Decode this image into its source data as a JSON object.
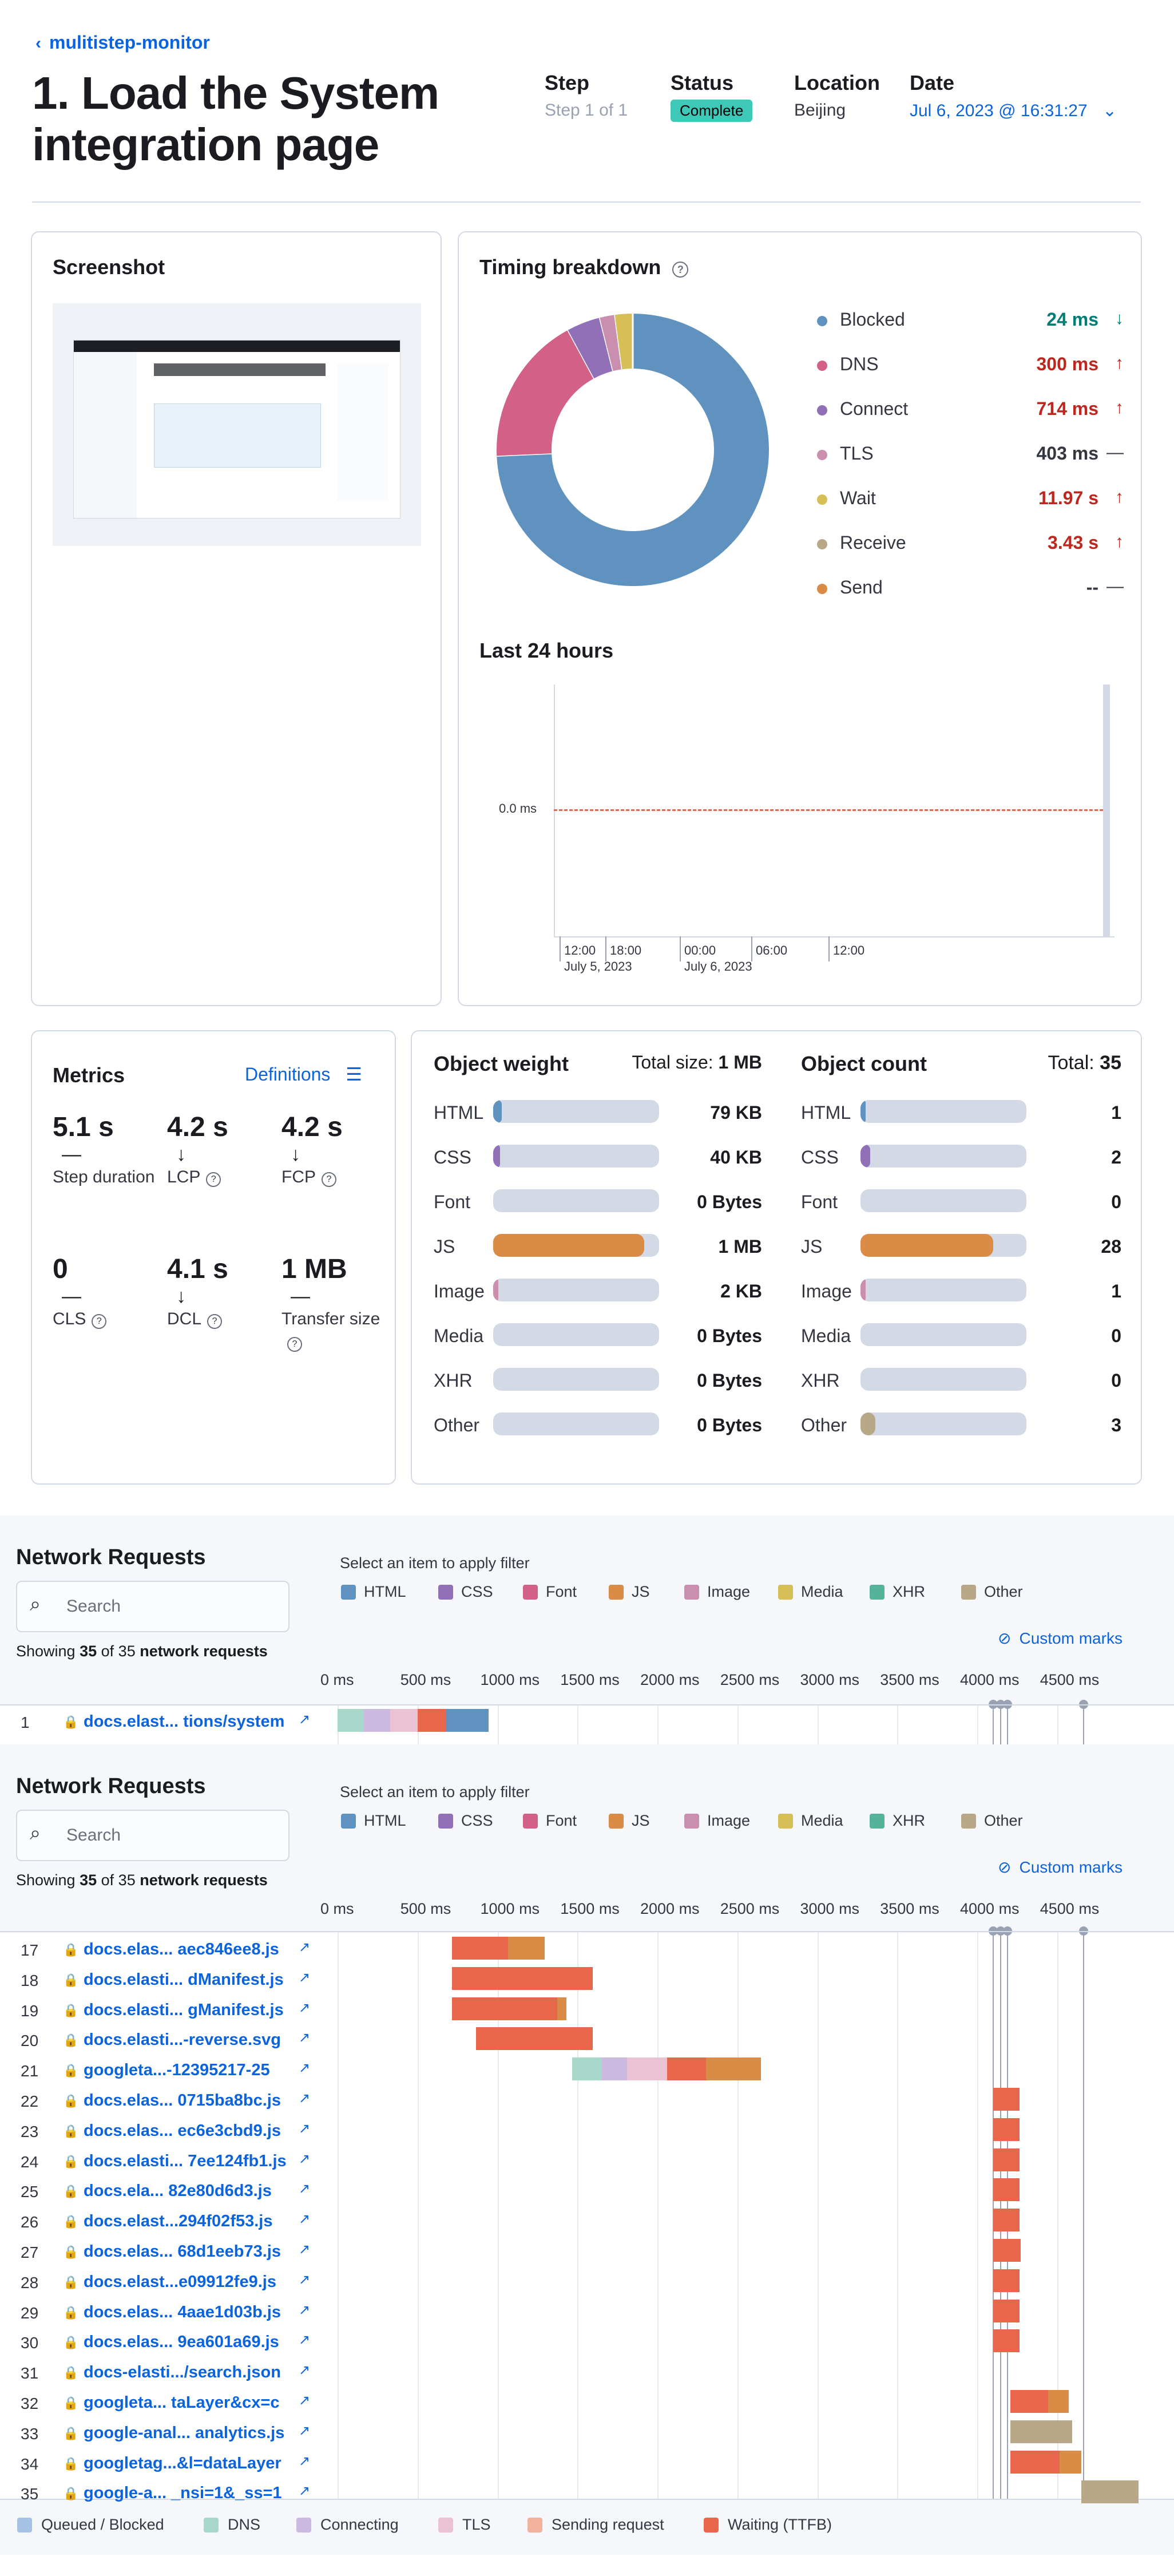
{
  "breadcrumb": {
    "back_label": "mulitistep-monitor"
  },
  "page_title": "1. Load the System integration page",
  "header_meta": {
    "step_label": "Step",
    "step_value": "Step 1 of 1",
    "status_label": "Status",
    "status_value": "Complete",
    "location_label": "Location",
    "location_value": "Beijing",
    "date_label": "Date",
    "date_value": "Jul 6, 2023 @ 16:31:27"
  },
  "screenshot_card": {
    "title": "Screenshot"
  },
  "timing": {
    "title": "Timing breakdown",
    "items": [
      {
        "label": "Blocked",
        "value": "24 ms",
        "trend": "down",
        "color": "#6092c0",
        "value_color": "#017d73"
      },
      {
        "label": "DNS",
        "value": "300 ms",
        "trend": "up",
        "color": "#d36086",
        "value_color": "#bd271e"
      },
      {
        "label": "Connect",
        "value": "714 ms",
        "trend": "up",
        "color": "#9170b8",
        "value_color": "#bd271e"
      },
      {
        "label": "TLS",
        "value": "403 ms",
        "trend": "flat",
        "color": "#ca8eae",
        "value_color": "#343741"
      },
      {
        "label": "Wait",
        "value": "11.97 s",
        "trend": "up",
        "color": "#d6bf57",
        "value_color": "#bd271e"
      },
      {
        "label": "Receive",
        "value": "3.43 s",
        "trend": "up",
        "color": "#b9a888",
        "value_color": "#bd271e"
      },
      {
        "label": "Send",
        "value": "--",
        "trend": "flat",
        "color": "#da8b45",
        "value_color": "#343741"
      }
    ],
    "donut_shares": [
      0.743,
      0.178,
      0.04,
      0.018,
      0.021,
      0.0,
      0.0
    ]
  },
  "last24": {
    "title": "Last 24 hours",
    "y_label": "0.0 ms",
    "x_ticks": [
      {
        "top": "12:00",
        "bottom": "July 5, 2023"
      },
      {
        "top": "18:00",
        "bottom": ""
      },
      {
        "top": "00:00",
        "bottom": "July 6, 2023"
      },
      {
        "top": "06:00",
        "bottom": ""
      },
      {
        "top": "12:00",
        "bottom": ""
      }
    ]
  },
  "metrics": {
    "title": "Metrics",
    "definitions_label": "Definitions",
    "items": [
      {
        "value": "5.1 s",
        "trend": "—",
        "label": "Step duration",
        "help": false
      },
      {
        "value": "4.2 s",
        "trend": "↓",
        "label": "LCP",
        "help": true
      },
      {
        "value": "4.2 s",
        "trend": "↓",
        "label": "FCP",
        "help": true
      },
      {
        "value": "0",
        "trend": "—",
        "label": "CLS",
        "help": true
      },
      {
        "value": "4.1 s",
        "trend": "↓",
        "label": "DCL",
        "help": true
      },
      {
        "value": "1 MB",
        "trend": "—",
        "label": "Transfer size",
        "help": true
      }
    ]
  },
  "object_weight": {
    "title": "Object weight",
    "total_label": "Total size:",
    "total_value": "1 MB",
    "rows": [
      {
        "label": "HTML",
        "value": "79 KB",
        "fill": 0.05,
        "color": "#6092c0"
      },
      {
        "label": "CSS",
        "value": "40 KB",
        "fill": 0.04,
        "color": "#9170b8"
      },
      {
        "label": "Font",
        "value": "0 Bytes",
        "fill": 0,
        "color": "#d36086"
      },
      {
        "label": "JS",
        "value": "1 MB",
        "fill": 0.91,
        "color": "#da8b45"
      },
      {
        "label": "Image",
        "value": "2 KB",
        "fill": 0.005,
        "color": "#ca8eae"
      },
      {
        "label": "Media",
        "value": "0 Bytes",
        "fill": 0,
        "color": "#d6bf57"
      },
      {
        "label": "XHR",
        "value": "0 Bytes",
        "fill": 0,
        "color": "#54b399"
      },
      {
        "label": "Other",
        "value": "0 Bytes",
        "fill": 0,
        "color": "#b9a888"
      }
    ]
  },
  "object_count": {
    "title": "Object count",
    "total_label": "Total:",
    "total_value": "35",
    "rows": [
      {
        "label": "HTML",
        "value": "1",
        "fill": 0.03,
        "color": "#6092c0"
      },
      {
        "label": "CSS",
        "value": "2",
        "fill": 0.06,
        "color": "#9170b8"
      },
      {
        "label": "Font",
        "value": "0",
        "fill": 0,
        "color": "#d36086"
      },
      {
        "label": "JS",
        "value": "28",
        "fill": 0.8,
        "color": "#da8b45"
      },
      {
        "label": "Image",
        "value": "1",
        "fill": 0.03,
        "color": "#ca8eae"
      },
      {
        "label": "Media",
        "value": "0",
        "fill": 0,
        "color": "#d6bf57"
      },
      {
        "label": "XHR",
        "value": "0",
        "fill": 0,
        "color": "#54b399"
      },
      {
        "label": "Other",
        "value": "3",
        "fill": 0.09,
        "color": "#b9a888"
      }
    ]
  },
  "network": {
    "title": "Network Requests",
    "search_placeholder": "Search",
    "filter_hint": "Select an item to apply filter",
    "filters": [
      {
        "label": "HTML",
        "color": "#6092c0"
      },
      {
        "label": "CSS",
        "color": "#9170b8"
      },
      {
        "label": "Font",
        "color": "#d36086"
      },
      {
        "label": "JS",
        "color": "#da8b45"
      },
      {
        "label": "Image",
        "color": "#ca8eae"
      },
      {
        "label": "Media",
        "color": "#d6bf57"
      },
      {
        "label": "XHR",
        "color": "#54b399"
      },
      {
        "label": "Other",
        "color": "#b9a888"
      }
    ],
    "showing_prefix": "Showing",
    "showing_count": "35",
    "showing_mid": "of 35",
    "showing_suffix": "network requests",
    "custom_marks": "Custom marks",
    "axis_ticks": [
      "0 ms",
      "500 ms",
      "1000 ms",
      "1500 ms",
      "2000 ms",
      "2500 ms",
      "3000 ms",
      "3500 ms",
      "4000 ms",
      "4500 ms"
    ],
    "first_section_rows": [
      {
        "num": "1",
        "name": "docs.elast... tions/system"
      }
    ],
    "rows": [
      {
        "num": "17",
        "name": "docs.elas... aec846ee8.js"
      },
      {
        "num": "18",
        "name": "docs.elasti... dManifest.js"
      },
      {
        "num": "19",
        "name": "docs.elasti... gManifest.js"
      },
      {
        "num": "20",
        "name": "docs.elasti...-reverse.svg"
      },
      {
        "num": "21",
        "name": "googleta...-12395217-25"
      },
      {
        "num": "22",
        "name": "docs.elas... 0715ba8bc.js"
      },
      {
        "num": "23",
        "name": "docs.elas... ec6e3cbd9.js"
      },
      {
        "num": "24",
        "name": "docs.elasti... 7ee124fb1.js"
      },
      {
        "num": "25",
        "name": "docs.ela... 82e80d6d3.js"
      },
      {
        "num": "26",
        "name": "docs.elast...294f02f53.js"
      },
      {
        "num": "27",
        "name": "docs.elas... 68d1eeb73.js"
      },
      {
        "num": "28",
        "name": "docs.elast...e09912fe9.js"
      },
      {
        "num": "29",
        "name": "docs.elas... 4aae1d03b.js"
      },
      {
        "num": "30",
        "name": "docs.elas... 9ea601a69.js"
      },
      {
        "num": "31",
        "name": "docs-elasti.../search.json"
      },
      {
        "num": "32",
        "name": "googleta... taLayer&cx=c"
      },
      {
        "num": "33",
        "name": "google-anal... analytics.js"
      },
      {
        "num": "34",
        "name": "googletag...&l=dataLayer"
      },
      {
        "num": "35",
        "name": "google-a... _nsi=1&_ss=1"
      }
    ],
    "bottom_legend": [
      {
        "label": "Queued / Blocked",
        "color": "#a6c3e6"
      },
      {
        "label": "DNS",
        "color": "#a7d8c9"
      },
      {
        "label": "Connecting",
        "color": "#cbb9e0"
      },
      {
        "label": "TLS",
        "color": "#e9c3d4"
      },
      {
        "label": "Sending request",
        "color": "#f3b29d"
      },
      {
        "label": "Waiting (TTFB)",
        "color": "#e7664c"
      }
    ]
  },
  "colors": {
    "accent": "#0b64dd",
    "success_badge": "#3ec8b7",
    "waiting": "#e7664c",
    "js": "#da8b45",
    "other": "#b9a888"
  }
}
